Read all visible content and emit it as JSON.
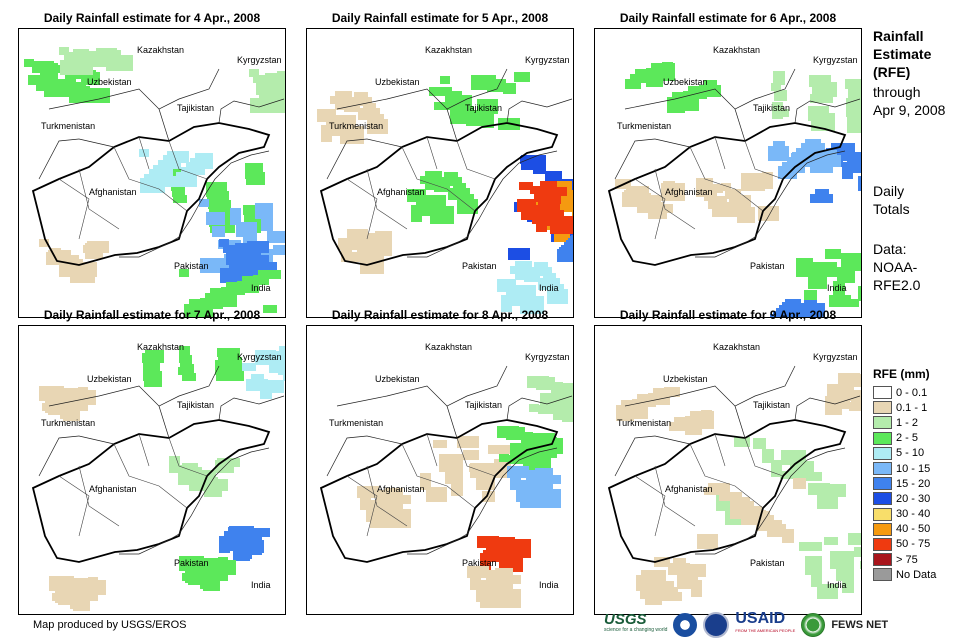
{
  "panels": [
    {
      "title": "Daily Rainfall estimate for 4 Apr., 2008"
    },
    {
      "title": "Daily Rainfall estimate for 5 Apr., 2008"
    },
    {
      "title": "Daily Rainfall estimate for 6 Apr., 2008"
    },
    {
      "title": "Daily Rainfall estimate for 7 Apr., 2008"
    },
    {
      "title": "Daily Rainfall estimate for 8 Apr., 2008"
    },
    {
      "title": "Daily Rainfall estimate for 9 Apr., 2008"
    }
  ],
  "country_labels": {
    "kazakhstan": "Kazakhstan",
    "kyrgyzstan": "Kyrgyzstan",
    "uzbekistan": "Uzbekistan",
    "tajikistan": "Tajikistan",
    "turkmenistan": "Turkmenistan",
    "afghanistan": "Afghanistan",
    "pakistan": "Pakistan",
    "india": "India"
  },
  "sidebar": {
    "title_line1": "Rainfall",
    "title_line2": "Estimate",
    "title_line3": "(RFE)",
    "through_line1": "through",
    "through_line2": "Apr 9, 2008",
    "daily_line1": "Daily",
    "daily_line2": "Totals",
    "data_line1": "Data:",
    "data_line2": "NOAA-",
    "data_line3": "RFE2.0"
  },
  "legend": {
    "title": "RFE (mm)",
    "items": [
      {
        "label": "0 - 0.1",
        "color": "#ffffff"
      },
      {
        "label": "0.1 - 1",
        "color": "#e8d6b4"
      },
      {
        "label": "1 - 2",
        "color": "#b4ecac"
      },
      {
        "label": "2 - 5",
        "color": "#5ce85a"
      },
      {
        "label": "5 - 10",
        "color": "#aeecf4"
      },
      {
        "label": "10 - 15",
        "color": "#7ab8f8"
      },
      {
        "label": "15 - 20",
        "color": "#3f82ee"
      },
      {
        "label": "20 - 30",
        "color": "#1c4ee4"
      },
      {
        "label": "30 - 40",
        "color": "#f8de6a"
      },
      {
        "label": "40 - 50",
        "color": "#f59a10"
      },
      {
        "label": "50 - 75",
        "color": "#ef3a10"
      },
      {
        "label": "> 75",
        "color": "#a8151c"
      },
      {
        "label": "No Data",
        "color": "#9a9a9a"
      }
    ]
  },
  "footer": {
    "credit": "Map produced by USGS/EROS",
    "logo_usgs": "USGS",
    "logo_usgs_tagline": "science for a changing world",
    "logo_usaid": "USAID",
    "logo_usaid_tagline": "FROM THE AMERICAN PEOPLE",
    "logo_fews": "FEWS NET"
  }
}
